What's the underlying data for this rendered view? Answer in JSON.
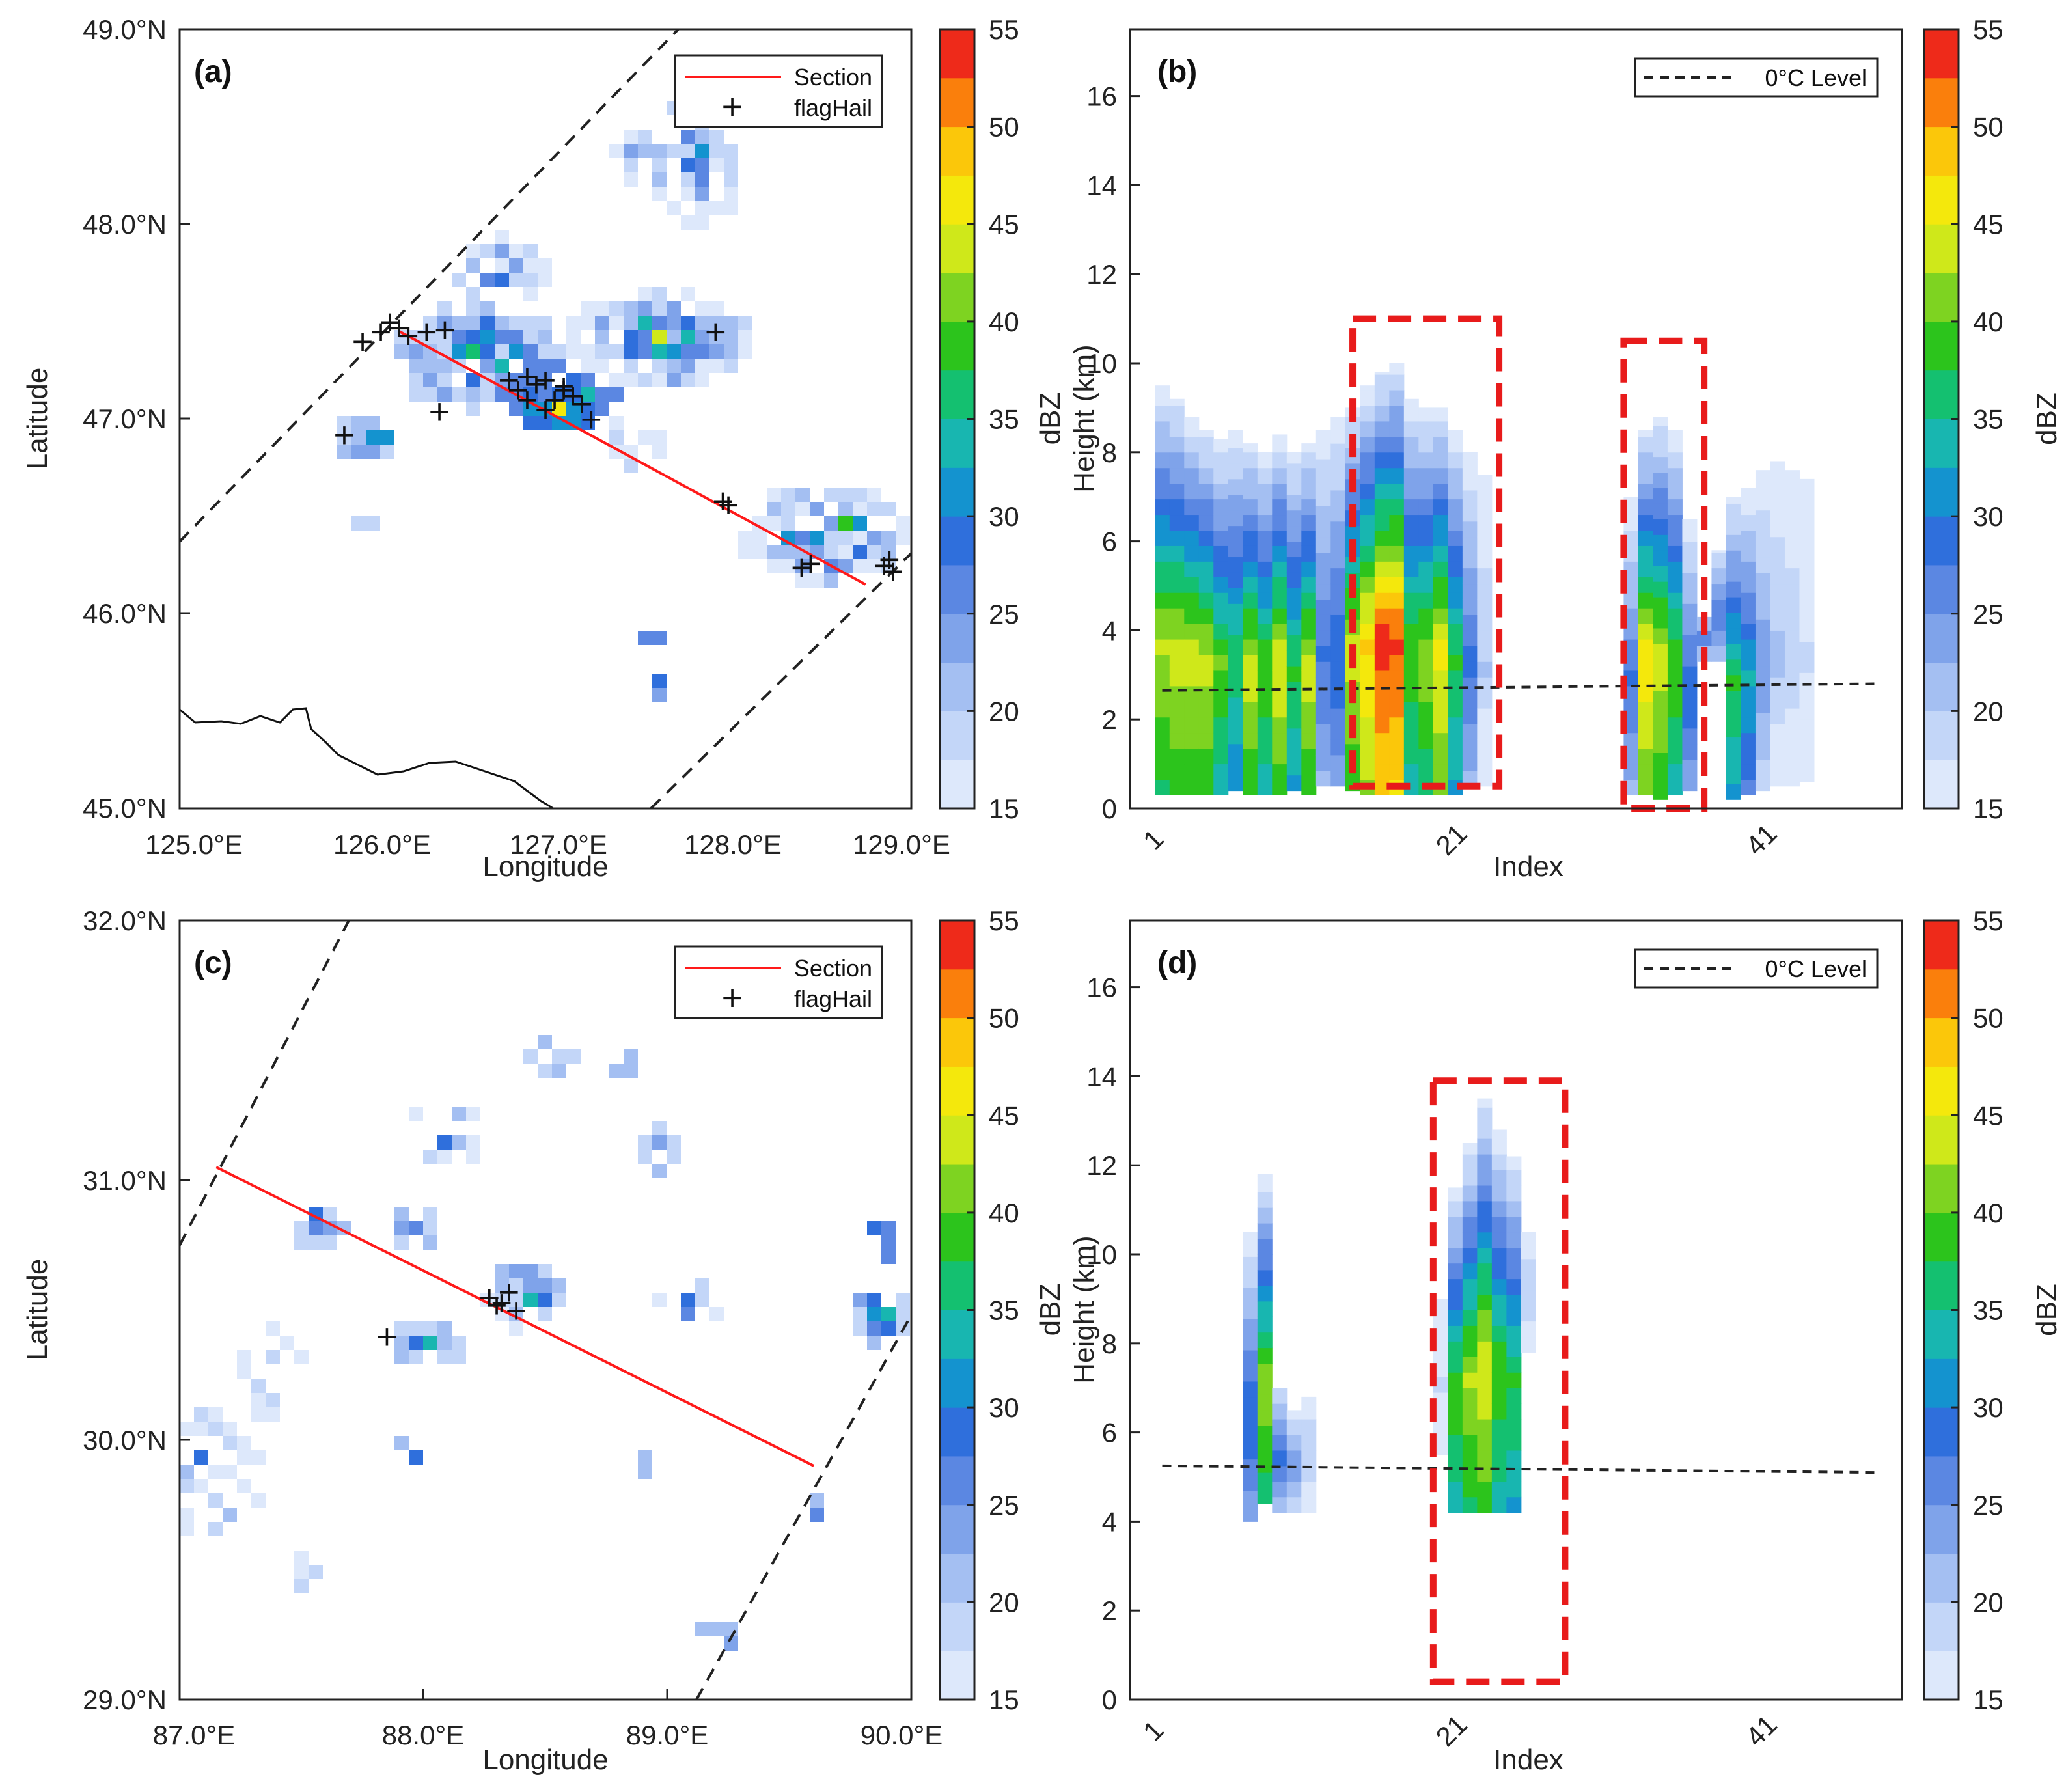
{
  "colors": {
    "section_line": "#ff1a1a",
    "highlight_box": "#e81b1b",
    "dbz_scale": [
      "#dde8fb",
      "#c3d6f8",
      "#a4bff2",
      "#7fa3ea",
      "#5b87e2",
      "#2f6fdc",
      "#1493cf",
      "#18b6b0",
      "#14c070",
      "#2cc41c",
      "#7ed321",
      "#cfe81a",
      "#f4e80c",
      "#fbc70a",
      "#fa7f0c",
      "#ee2a1a"
    ]
  },
  "panels": {
    "a": {
      "label": "(a)",
      "xlabel": "Longitude",
      "ylabel": "Latitude",
      "xticks": [
        "125.0°E",
        "126.0°E",
        "127.0°E",
        "128.0°E",
        "129.0°E"
      ],
      "yticks": [
        "49.0°N",
        "48.0°N",
        "47.0°N",
        "46.0°N",
        "45.0°N"
      ],
      "legend": [
        "Section",
        "flagHail"
      ]
    },
    "b": {
      "label": "(b)",
      "xlabel": "Index",
      "ylabel_lines": [
        "dBZ",
        "Height (km)"
      ],
      "xticks": [
        "1",
        "21",
        "41"
      ],
      "yticks": [
        "16",
        "14",
        "12",
        "10",
        "8",
        "6",
        "4",
        "2",
        "0"
      ],
      "legend": [
        "0°C Level"
      ]
    },
    "c": {
      "label": "(c)",
      "xlabel": "Longitude",
      "ylabel": "Latitude",
      "xticks": [
        "87.0°E",
        "88.0°E",
        "89.0°E",
        "90.0°E"
      ],
      "yticks": [
        "32.0°N",
        "31.0°N",
        "30.0°N",
        "29.0°N"
      ],
      "legend": [
        "Section",
        "flagHail"
      ]
    },
    "d": {
      "label": "(d)",
      "xlabel": "Index",
      "ylabel_lines": [
        "dBZ",
        "Height (km)"
      ],
      "xticks": [
        "1",
        "21",
        "41"
      ],
      "yticks": [
        "16",
        "14",
        "12",
        "10",
        "8",
        "6",
        "4",
        "2",
        "0"
      ],
      "legend": [
        "0°C Level"
      ]
    }
  },
  "colorbar": {
    "label": "dBZ",
    "ticks": [
      "55",
      "50",
      "45",
      "40",
      "35",
      "30",
      "25",
      "20",
      "15"
    ]
  },
  "chart_data": [
    {
      "panel": "a",
      "type": "heatmap",
      "xlim": [
        125,
        129
      ],
      "ylim": [
        45,
        49
      ],
      "section_line": {
        "x": [
          126.2,
          128.75
        ],
        "y": [
          47.45,
          46.15
        ]
      },
      "flagHail": {
        "x": [
          126.0,
          126.1,
          126.15,
          126.2,
          126.25,
          126.35,
          126.45,
          126.42,
          125.9,
          126.8,
          126.85,
          126.9,
          126.95,
          127.0,
          127.05,
          127.1,
          127.15,
          127.2,
          127.25,
          126.9,
          127.0,
          127.1,
          127.93,
          127.97,
          128.0,
          128.4,
          128.45,
          128.85,
          128.88,
          128.9
        ],
        "y": [
          47.4,
          47.45,
          47.5,
          47.47,
          47.43,
          47.45,
          47.46,
          47.04,
          46.92,
          47.2,
          47.15,
          47.22,
          47.18,
          47.2,
          47.1,
          47.15,
          47.12,
          47.08,
          47.0,
          47.1,
          47.05,
          47.17,
          47.45,
          46.58,
          46.56,
          46.24,
          46.26,
          46.25,
          46.28,
          46.22
        ]
      },
      "cmap_range": [
        15,
        55
      ]
    },
    {
      "panel": "b",
      "type": "heatmap",
      "x_ticks": [
        1,
        21,
        41
      ],
      "ylim": [
        0,
        17.5
      ],
      "zero_c_level": {
        "x": [
          1,
          50
        ],
        "y": [
          2.65,
          2.8
        ]
      },
      "columns": [
        {
          "i": 1,
          "bottom": 0.3,
          "top": 9.5,
          "max_dbz": 43
        },
        {
          "i": 2,
          "bottom": 0.3,
          "top": 9.2,
          "max_dbz": 44
        },
        {
          "i": 3,
          "bottom": 0.3,
          "top": 8.8,
          "max_dbz": 44
        },
        {
          "i": 4,
          "bottom": 0.3,
          "top": 8.5,
          "max_dbz": 44
        },
        {
          "i": 5,
          "bottom": 0.3,
          "top": 8.3,
          "max_dbz": 40
        },
        {
          "i": 6,
          "bottom": 0.4,
          "top": 8.5,
          "max_dbz": 37
        },
        {
          "i": 7,
          "bottom": 0.3,
          "top": 8.2,
          "max_dbz": 44
        },
        {
          "i": 8,
          "bottom": 0.3,
          "top": 8.0,
          "max_dbz": 40
        },
        {
          "i": 9,
          "bottom": 0.3,
          "top": 8.4,
          "max_dbz": 45
        },
        {
          "i": 10,
          "bottom": 0.4,
          "top": 8.0,
          "max_dbz": 38
        },
        {
          "i": 11,
          "bottom": 0.3,
          "top": 8.2,
          "max_dbz": 44
        },
        {
          "i": 12,
          "bottom": 0.5,
          "top": 8.5,
          "max_dbz": 28
        },
        {
          "i": 13,
          "bottom": 0.5,
          "top": 8.8,
          "max_dbz": 30
        },
        {
          "i": 14,
          "bottom": 0.4,
          "top": 9.0,
          "max_dbz": 44
        },
        {
          "i": 15,
          "bottom": 0.3,
          "top": 9.5,
          "max_dbz": 48
        },
        {
          "i": 16,
          "bottom": 0.3,
          "top": 9.8,
          "max_dbz": 54
        },
        {
          "i": 17,
          "bottom": 0.3,
          "top": 10.0,
          "max_dbz": 53
        },
        {
          "i": 18,
          "bottom": 0.3,
          "top": 9.2,
          "max_dbz": 40
        },
        {
          "i": 19,
          "bottom": 0.3,
          "top": 9.0,
          "max_dbz": 42
        },
        {
          "i": 20,
          "bottom": 0.3,
          "top": 9.0,
          "max_dbz": 46
        },
        {
          "i": 21,
          "bottom": 0.3,
          "top": 8.5,
          "max_dbz": 38
        },
        {
          "i": 22,
          "bottom": 0.5,
          "top": 8.0,
          "max_dbz": 28
        },
        {
          "i": 23,
          "bottom": 0.5,
          "top": 7.5,
          "max_dbz": 20
        },
        {
          "i": 33,
          "bottom": 0.3,
          "top": 7.0,
          "max_dbz": 28
        },
        {
          "i": 34,
          "bottom": 0.3,
          "top": 8.5,
          "max_dbz": 47
        },
        {
          "i": 35,
          "bottom": 0.2,
          "top": 8.8,
          "max_dbz": 44
        },
        {
          "i": 36,
          "bottom": 0.3,
          "top": 8.5,
          "max_dbz": 40
        },
        {
          "i": 37,
          "bottom": 0.4,
          "top": 6.5,
          "max_dbz": 30
        },
        {
          "i": 38,
          "bottom": 3.3,
          "top": 4.3,
          "max_dbz": 27
        },
        {
          "i": 39,
          "bottom": 3.3,
          "top": 5.8,
          "max_dbz": 27
        },
        {
          "i": 40,
          "bottom": 0.2,
          "top": 7.0,
          "max_dbz": 38
        },
        {
          "i": 41,
          "bottom": 0.3,
          "top": 7.2,
          "max_dbz": 33
        },
        {
          "i": 42,
          "bottom": 0.4,
          "top": 7.6,
          "max_dbz": 25
        },
        {
          "i": 43,
          "bottom": 0.5,
          "top": 7.8,
          "max_dbz": 21
        },
        {
          "i": 44,
          "bottom": 0.5,
          "top": 7.6,
          "max_dbz": 20
        },
        {
          "i": 45,
          "bottom": 0.6,
          "top": 7.4,
          "max_dbz": 18
        }
      ],
      "highlight_boxes": [
        {
          "x": [
            14,
            24
          ],
          "y": [
            0.5,
            11
          ]
        },
        {
          "x": [
            32.5,
            38
          ],
          "y": [
            0,
            10.5
          ]
        }
      ],
      "cmap_range": [
        15,
        55
      ]
    },
    {
      "panel": "c",
      "type": "heatmap",
      "xlim": [
        87,
        90
      ],
      "ylim": [
        29,
        32
      ],
      "section_line": {
        "x": [
          87.15,
          89.6
        ],
        "y": [
          31.05,
          29.9
        ]
      },
      "flagHail": {
        "x": [
          87.85,
          88.27,
          88.32,
          88.35,
          88.3,
          88.38
        ],
        "y": [
          30.4,
          30.55,
          30.53,
          30.57,
          30.52,
          30.5
        ]
      },
      "cmap_range": [
        15,
        55
      ]
    },
    {
      "panel": "d",
      "type": "heatmap",
      "x_ticks": [
        1,
        21,
        41
      ],
      "ylim": [
        0,
        17.5
      ],
      "zero_c_level": {
        "x": [
          1,
          50
        ],
        "y": [
          5.25,
          5.1
        ]
      },
      "columns": [
        {
          "i": 7,
          "bottom": 4.0,
          "top": 10.5,
          "max_dbz": 30
        },
        {
          "i": 8,
          "bottom": 4.4,
          "top": 11.8,
          "max_dbz": 42
        },
        {
          "i": 9,
          "bottom": 4.2,
          "top": 7.0,
          "max_dbz": 28
        },
        {
          "i": 10,
          "bottom": 4.2,
          "top": 6.5,
          "max_dbz": 24
        },
        {
          "i": 11,
          "bottom": 4.2,
          "top": 6.8,
          "max_dbz": 20
        },
        {
          "i": 20,
          "bottom": 5.5,
          "top": 9.0,
          "max_dbz": 18
        },
        {
          "i": 21,
          "bottom": 4.2,
          "top": 11.5,
          "max_dbz": 40
        },
        {
          "i": 22,
          "bottom": 4.2,
          "top": 12.5,
          "max_dbz": 43
        },
        {
          "i": 23,
          "bottom": 4.2,
          "top": 13.5,
          "max_dbz": 45
        },
        {
          "i": 24,
          "bottom": 4.2,
          "top": 12.8,
          "max_dbz": 40
        },
        {
          "i": 25,
          "bottom": 4.2,
          "top": 12.2,
          "max_dbz": 38
        },
        {
          "i": 26,
          "bottom": 7.8,
          "top": 10.5,
          "max_dbz": 20
        }
      ],
      "highlight_boxes": [
        {
          "x": [
            19.5,
            28.5
          ],
          "y": [
            0.4,
            13.9
          ]
        }
      ],
      "cmap_range": [
        15,
        55
      ]
    }
  ]
}
